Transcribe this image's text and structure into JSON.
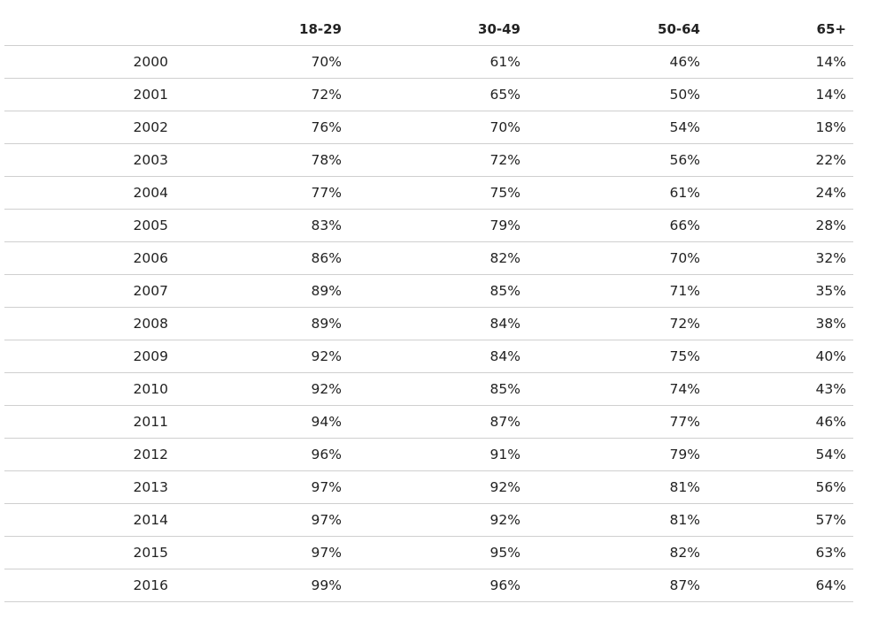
{
  "chart_data": {
    "type": "table",
    "columns": [
      "",
      "18-29",
      "30-49",
      "50-64",
      "65+"
    ],
    "rows": [
      [
        "2000",
        "70%",
        "61%",
        "46%",
        "14%"
      ],
      [
        "2001",
        "72%",
        "65%",
        "50%",
        "14%"
      ],
      [
        "2002",
        "76%",
        "70%",
        "54%",
        "18%"
      ],
      [
        "2003",
        "78%",
        "72%",
        "56%",
        "22%"
      ],
      [
        "2004",
        "77%",
        "75%",
        "61%",
        "24%"
      ],
      [
        "2005",
        "83%",
        "79%",
        "66%",
        "28%"
      ],
      [
        "2006",
        "86%",
        "82%",
        "70%",
        "32%"
      ],
      [
        "2007",
        "89%",
        "85%",
        "71%",
        "35%"
      ],
      [
        "2008",
        "89%",
        "84%",
        "72%",
        "38%"
      ],
      [
        "2009",
        "92%",
        "84%",
        "75%",
        "40%"
      ],
      [
        "2010",
        "92%",
        "85%",
        "74%",
        "43%"
      ],
      [
        "2011",
        "94%",
        "87%",
        "77%",
        "46%"
      ],
      [
        "2012",
        "96%",
        "91%",
        "79%",
        "54%"
      ],
      [
        "2013",
        "97%",
        "92%",
        "81%",
        "56%"
      ],
      [
        "2014",
        "97%",
        "92%",
        "81%",
        "57%"
      ],
      [
        "2015",
        "97%",
        "95%",
        "82%",
        "63%"
      ],
      [
        "2016",
        "99%",
        "96%",
        "87%",
        "64%"
      ]
    ]
  }
}
